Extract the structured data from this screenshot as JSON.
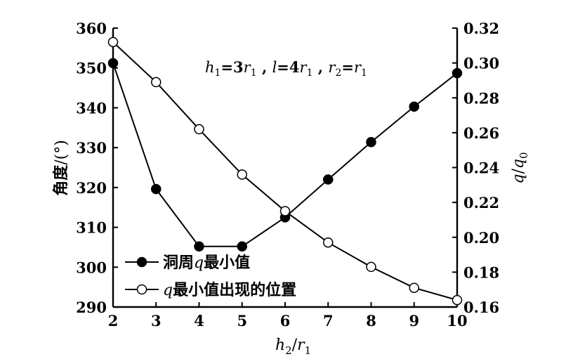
{
  "chart_data": {
    "type": "line",
    "x": [
      2,
      3,
      4,
      5,
      6,
      7,
      8,
      9,
      10
    ],
    "xlim": [
      2,
      10
    ],
    "x_ticks": [
      "2",
      "3",
      "4",
      "5",
      "6",
      "7",
      "8",
      "9",
      "10"
    ],
    "xlabel": {
      "h": "h",
      "sub2": "2",
      "slash": "/",
      "r": "r",
      "sub1": "1"
    },
    "y_left": {
      "label": {
        "text": "角度/(°)",
        "main": "角度",
        "slash": "/",
        "unit": "(°)"
      },
      "lim": [
        290,
        360
      ],
      "ticks": [
        "290",
        "300",
        "310",
        "320",
        "330",
        "340",
        "350",
        "360"
      ]
    },
    "y_right": {
      "label": {
        "q": "q",
        "slash": "/",
        "q0": "q",
        "sub0": "0"
      },
      "lim": [
        0.16,
        0.32
      ],
      "ticks": [
        "0.16",
        "0.18",
        "0.20",
        "0.22",
        "0.24",
        "0.26",
        "0.28",
        "0.30",
        "0.32"
      ]
    },
    "annotation": {
      "h": "h",
      "h_sub": "1",
      "eq1": "=3",
      "r_a": "r",
      "r_a_sub": "1",
      "comma1": " , ",
      "l": "l",
      "eq2": "=4",
      "r_b": "r",
      "r_b_sub": "1",
      "comma2": " , ",
      "r_c": "r",
      "r_c_sub": "2",
      "eq3": "=",
      "r_d": "r",
      "r_d_sub": "1"
    },
    "series": [
      {
        "name": {
          "prefix": "洞周",
          "var": "q",
          "suffix": "最小值"
        },
        "axis": "left",
        "marker": "filled-circle",
        "values": [
          351.2,
          319.6,
          305.2,
          305.2,
          312.5,
          322.0,
          331.4,
          340.3,
          348.7
        ]
      },
      {
        "name": {
          "prefix": "",
          "var": "q",
          "suffix": "最小值出现的位置"
        },
        "axis": "right",
        "marker": "open-circle",
        "values": [
          0.312,
          0.289,
          0.262,
          0.236,
          0.215,
          0.197,
          0.183,
          0.171,
          0.164
        ]
      }
    ],
    "legend_position": "bottom-left",
    "grid": false
  }
}
